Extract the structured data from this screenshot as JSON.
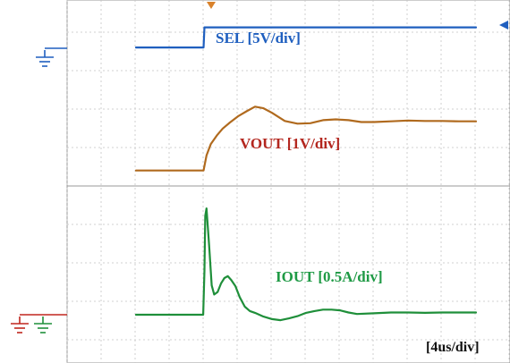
{
  "chart_data": {
    "type": "line",
    "title": "",
    "xlabel": "",
    "ylabel": "",
    "timebase": "[4us/div]",
    "x_unit": "us",
    "xlim": [
      -8,
      32
    ],
    "grid": true,
    "series": [
      {
        "name": "SEL [5V/div]",
        "color": "#1f5fbf",
        "volts_per_div": 5,
        "x": [
          -8,
          -0.05,
          0.05,
          32
        ],
        "y": [
          0.05,
          0.05,
          1.3,
          1.3
        ]
      },
      {
        "name": "VOUT [1V/div]",
        "color": "#b06a1e",
        "volts_per_div": 1,
        "x": [
          -8,
          -0.05,
          0.3,
          0.8,
          1.5,
          2.2,
          3,
          4,
          5,
          6,
          7,
          8,
          9.5,
          11,
          12.5,
          14,
          15.5,
          17,
          18.5,
          20,
          22,
          24,
          26,
          28,
          30,
          32
        ],
        "y": [
          -0.04,
          -0.04,
          0.35,
          0.65,
          0.87,
          1.05,
          1.2,
          1.37,
          1.5,
          1.62,
          1.58,
          1.46,
          1.25,
          1.18,
          1.19,
          1.27,
          1.29,
          1.27,
          1.22,
          1.22,
          1.24,
          1.26,
          1.25,
          1.25,
          1.24,
          1.24
        ]
      },
      {
        "name": "IOUT [0.5A/div]",
        "color": "#1f8f3a",
        "amps_per_div": 0.5,
        "x": [
          -8,
          -0.1,
          0.05,
          0.15,
          0.3,
          0.6,
          0.9,
          1.2,
          1.6,
          2,
          2.4,
          2.8,
          3.2,
          3.7,
          4.2,
          4.8,
          5.4,
          6,
          7,
          8,
          9,
          10,
          11,
          12,
          13,
          14,
          15,
          16,
          17,
          18,
          20,
          22,
          24,
          26,
          28,
          30,
          32
        ],
        "y": [
          0.0,
          0.0,
          1.2,
          2.7,
          2.9,
          1.9,
          0.8,
          0.55,
          0.62,
          0.85,
          1.0,
          1.05,
          0.95,
          0.78,
          0.48,
          0.22,
          0.1,
          0.05,
          -0.05,
          -0.12,
          -0.15,
          -0.1,
          -0.04,
          0.05,
          0.1,
          0.14,
          0.14,
          0.12,
          0.06,
          0.02,
          0.04,
          0.06,
          0.06,
          0.05,
          0.06,
          0.06,
          0.06
        ]
      }
    ]
  }
}
